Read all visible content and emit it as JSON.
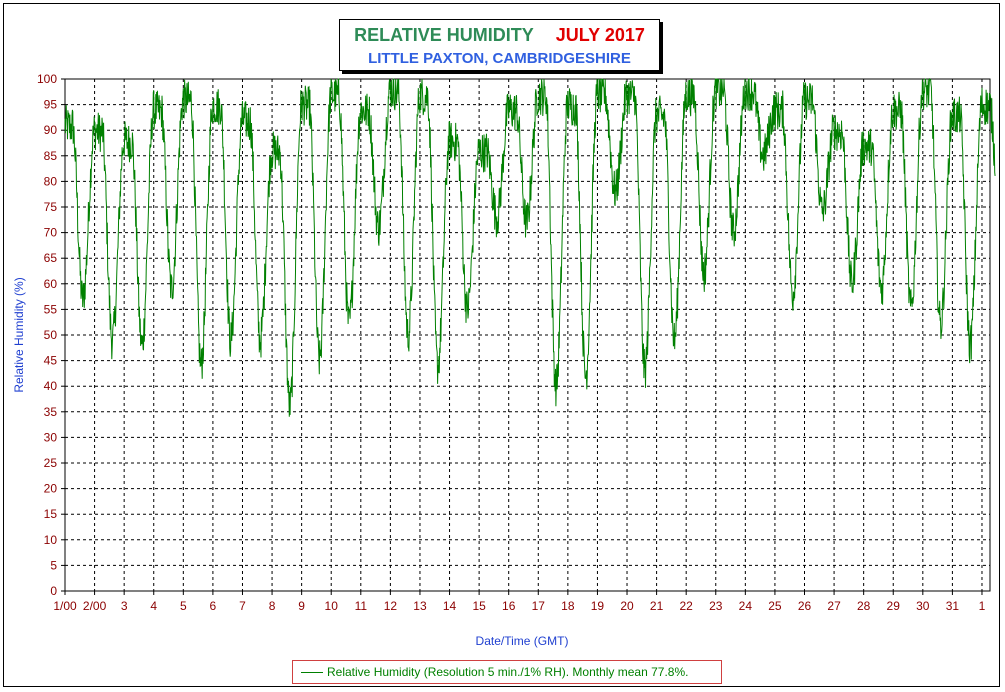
{
  "chart_data": {
    "type": "line",
    "title": "RELATIVE HUMIDITY",
    "title_period": "JULY 2017",
    "subtitle": "LITTLE PAXTON, CAMBRIDGESHIRE",
    "xlabel": "Date/Time (GMT)",
    "ylabel": "Relative Humidity (%)",
    "ylim": [
      0,
      100
    ],
    "y_ticks": [
      0,
      5,
      10,
      15,
      20,
      25,
      30,
      35,
      40,
      45,
      50,
      55,
      60,
      65,
      70,
      75,
      80,
      85,
      90,
      95,
      100
    ],
    "x_ticks": [
      "1/00",
      "2/00",
      "3",
      "4",
      "5",
      "6",
      "7",
      "8",
      "9",
      "10",
      "11",
      "12",
      "13",
      "14",
      "15",
      "16",
      "17",
      "18",
      "19",
      "20",
      "21",
      "22",
      "23",
      "24",
      "25",
      "26",
      "27",
      "28",
      "29",
      "30",
      "31",
      "1"
    ],
    "grid": true,
    "legend_position": "bottom",
    "series": [
      {
        "name": "Relative Humidity (Resolution 5 min./1% RH). Monthly mean 77.8%.",
        "color": "#008000",
        "daily": [
          {
            "day": 1,
            "max": 91,
            "min": 57
          },
          {
            "day": 2,
            "max": 90,
            "min": 49
          },
          {
            "day": 3,
            "max": 88,
            "min": 48
          },
          {
            "day": 4,
            "max": 94,
            "min": 59
          },
          {
            "day": 5,
            "max": 96,
            "min": 44
          },
          {
            "day": 6,
            "max": 95,
            "min": 49
          },
          {
            "day": 7,
            "max": 92,
            "min": 49
          },
          {
            "day": 8,
            "max": 86,
            "min": 36
          },
          {
            "day": 9,
            "max": 95,
            "min": 45
          },
          {
            "day": 10,
            "max": 97,
            "min": 52
          },
          {
            "day": 11,
            "max": 94,
            "min": 71
          },
          {
            "day": 12,
            "max": 98,
            "min": 50
          },
          {
            "day": 13,
            "max": 97,
            "min": 44
          },
          {
            "day": 14,
            "max": 88,
            "min": 55
          },
          {
            "day": 15,
            "max": 86,
            "min": 73
          },
          {
            "day": 16,
            "max": 94,
            "min": 72
          },
          {
            "day": 17,
            "max": 97,
            "min": 40
          },
          {
            "day": 18,
            "max": 95,
            "min": 42
          },
          {
            "day": 19,
            "max": 97,
            "min": 78
          },
          {
            "day": 20,
            "max": 97,
            "min": 43
          },
          {
            "day": 21,
            "max": 93,
            "min": 49
          },
          {
            "day": 22,
            "max": 97,
            "min": 62
          },
          {
            "day": 23,
            "max": 98,
            "min": 70
          },
          {
            "day": 24,
            "max": 98,
            "min": 85
          },
          {
            "day": 25,
            "max": 94,
            "min": 58
          },
          {
            "day": 26,
            "max": 96,
            "min": 74
          },
          {
            "day": 27,
            "max": 90,
            "min": 60
          },
          {
            "day": 28,
            "max": 87,
            "min": 59
          },
          {
            "day": 29,
            "max": 94,
            "min": 55
          },
          {
            "day": 30,
            "max": 98,
            "min": 52
          },
          {
            "day": 31,
            "max": 93,
            "min": 48
          },
          {
            "day": 32,
            "max": 95,
            "min": 75
          }
        ]
      }
    ]
  }
}
